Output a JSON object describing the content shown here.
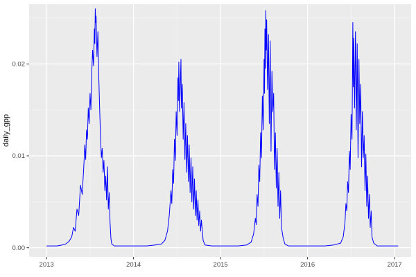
{
  "chart_data": {
    "type": "line",
    "title": "",
    "xlabel": "",
    "ylabel": "daily_gpp",
    "legend": "none",
    "grid": true,
    "xlim": [
      2012.8,
      2017.19
    ],
    "ylim": [
      -0.001,
      0.0265
    ],
    "x_ticks": {
      "values": [
        2013,
        2014,
        2015,
        2016,
        2017
      ],
      "labels": [
        "2013",
        "2014",
        "2015",
        "2016",
        "2017"
      ]
    },
    "y_ticks": {
      "values": [
        0,
        0.01,
        0.02
      ],
      "labels": [
        "0.00",
        "0.01",
        "0.02"
      ]
    },
    "x_minor": [
      2013.5,
      2014.5,
      2015.5,
      2016.5
    ],
    "y_minor": [
      0.005,
      0.015,
      0.025
    ],
    "colors": {
      "panel_bg": "#EBEBEB",
      "grid_major": "#FFFFFF",
      "grid_minor": "#F5F5F5",
      "line": "#0000FF",
      "tick_mark": "#333333",
      "tick_label": "#4D4D4D"
    },
    "series": [
      {
        "name": "daily_gpp",
        "color": "#0000FF",
        "points": [
          [
            2013.0,
            0.0002
          ],
          [
            2013.06,
            0.0002
          ],
          [
            2013.12,
            0.0002
          ],
          [
            2013.18,
            0.0003
          ],
          [
            2013.22,
            0.0004
          ],
          [
            2013.26,
            0.0007
          ],
          [
            2013.29,
            0.0012
          ],
          [
            2013.31,
            0.0022
          ],
          [
            2013.33,
            0.0018
          ],
          [
            2013.35,
            0.0042
          ],
          [
            2013.37,
            0.0035
          ],
          [
            2013.39,
            0.0068
          ],
          [
            2013.41,
            0.0058
          ],
          [
            2013.43,
            0.0092
          ],
          [
            2013.44,
            0.0112
          ],
          [
            2013.45,
            0.0096
          ],
          [
            2013.46,
            0.0128
          ],
          [
            2013.47,
            0.0118
          ],
          [
            2013.48,
            0.0152
          ],
          [
            2013.49,
            0.0135
          ],
          [
            2013.5,
            0.0168
          ],
          [
            2013.51,
            0.015
          ],
          [
            2013.52,
            0.0192
          ],
          [
            2013.53,
            0.0215
          ],
          [
            2013.54,
            0.0198
          ],
          [
            2013.55,
            0.0238
          ],
          [
            2013.555,
            0.0222
          ],
          [
            2013.56,
            0.026
          ],
          [
            2013.565,
            0.0245
          ],
          [
            2013.57,
            0.0252
          ],
          [
            2013.58,
            0.0208
          ],
          [
            2013.59,
            0.0235
          ],
          [
            2013.6,
            0.0188
          ],
          [
            2013.61,
            0.0152
          ],
          [
            2013.62,
            0.0122
          ],
          [
            2013.63,
            0.0098
          ],
          [
            2013.64,
            0.0108
          ],
          [
            2013.65,
            0.0082
          ],
          [
            2013.66,
            0.0095
          ],
          [
            2013.67,
            0.0062
          ],
          [
            2013.68,
            0.0078
          ],
          [
            2013.69,
            0.0052
          ],
          [
            2013.7,
            0.0088
          ],
          [
            2013.71,
            0.0042
          ],
          [
            2013.72,
            0.006
          ],
          [
            2013.73,
            0.0028
          ],
          [
            2013.74,
            0.001
          ],
          [
            2013.75,
            0.0004
          ],
          [
            2013.78,
            0.0002
          ],
          [
            2013.85,
            0.0002
          ],
          [
            2013.95,
            0.0002
          ],
          [
            2014.05,
            0.0002
          ],
          [
            2014.15,
            0.0002
          ],
          [
            2014.25,
            0.0003
          ],
          [
            2014.32,
            0.0004
          ],
          [
            2014.36,
            0.0008
          ],
          [
            2014.39,
            0.0018
          ],
          [
            2014.41,
            0.0035
          ],
          [
            2014.43,
            0.0062
          ],
          [
            2014.44,
            0.0048
          ],
          [
            2014.45,
            0.0085
          ],
          [
            2014.46,
            0.007
          ],
          [
            2014.47,
            0.0118
          ],
          [
            2014.48,
            0.0095
          ],
          [
            2014.49,
            0.0148
          ],
          [
            2014.5,
            0.0122
          ],
          [
            2014.51,
            0.0185
          ],
          [
            2014.515,
            0.016
          ],
          [
            2014.52,
            0.0202
          ],
          [
            2014.53,
            0.0148
          ],
          [
            2014.54,
            0.0188
          ],
          [
            2014.545,
            0.0205
          ],
          [
            2014.55,
            0.0152
          ],
          [
            2014.56,
            0.0178
          ],
          [
            2014.57,
            0.0118
          ],
          [
            2014.58,
            0.0158
          ],
          [
            2014.59,
            0.0096
          ],
          [
            2014.6,
            0.0135
          ],
          [
            2014.61,
            0.0082
          ],
          [
            2014.62,
            0.0122
          ],
          [
            2014.63,
            0.0072
          ],
          [
            2014.64,
            0.0112
          ],
          [
            2014.65,
            0.006
          ],
          [
            2014.66,
            0.0098
          ],
          [
            2014.67,
            0.005
          ],
          [
            2014.68,
            0.0088
          ],
          [
            2014.69,
            0.0042
          ],
          [
            2014.7,
            0.0075
          ],
          [
            2014.71,
            0.0035
          ],
          [
            2014.72,
            0.0062
          ],
          [
            2014.73,
            0.003
          ],
          [
            2014.74,
            0.0052
          ],
          [
            2014.75,
            0.0024
          ],
          [
            2014.76,
            0.004
          ],
          [
            2014.77,
            0.0018
          ],
          [
            2014.78,
            0.003
          ],
          [
            2014.8,
            0.0008
          ],
          [
            2014.82,
            0.0003
          ],
          [
            2014.9,
            0.0002
          ],
          [
            2015.0,
            0.0002
          ],
          [
            2015.1,
            0.0002
          ],
          [
            2015.2,
            0.0002
          ],
          [
            2015.3,
            0.0003
          ],
          [
            2015.35,
            0.0006
          ],
          [
            2015.38,
            0.0015
          ],
          [
            2015.4,
            0.0032
          ],
          [
            2015.41,
            0.0025
          ],
          [
            2015.42,
            0.0058
          ],
          [
            2015.43,
            0.0045
          ],
          [
            2015.44,
            0.009
          ],
          [
            2015.45,
            0.0072
          ],
          [
            2015.46,
            0.0125
          ],
          [
            2015.47,
            0.0098
          ],
          [
            2015.48,
            0.0165
          ],
          [
            2015.49,
            0.0128
          ],
          [
            2015.5,
            0.0205
          ],
          [
            2015.505,
            0.0168
          ],
          [
            2015.51,
            0.0238
          ],
          [
            2015.515,
            0.0195
          ],
          [
            2015.52,
            0.0258
          ],
          [
            2015.525,
            0.0215
          ],
          [
            2015.53,
            0.0248
          ],
          [
            2015.54,
            0.0172
          ],
          [
            2015.55,
            0.0232
          ],
          [
            2015.56,
            0.0135
          ],
          [
            2015.57,
            0.0225
          ],
          [
            2015.58,
            0.0105
          ],
          [
            2015.59,
            0.0192
          ],
          [
            2015.6,
            0.0148
          ],
          [
            2015.61,
            0.0168
          ],
          [
            2015.62,
            0.0085
          ],
          [
            2015.63,
            0.0125
          ],
          [
            2015.64,
            0.0065
          ],
          [
            2015.65,
            0.0108
          ],
          [
            2015.66,
            0.0045
          ],
          [
            2015.67,
            0.0082
          ],
          [
            2015.68,
            0.0032
          ],
          [
            2015.69,
            0.0062
          ],
          [
            2015.7,
            0.0022
          ],
          [
            2015.72,
            0.001
          ],
          [
            2015.74,
            0.0004
          ],
          [
            2015.78,
            0.0002
          ],
          [
            2015.9,
            0.0002
          ],
          [
            2016.0,
            0.0002
          ],
          [
            2016.1,
            0.0002
          ],
          [
            2016.2,
            0.0002
          ],
          [
            2016.3,
            0.0003
          ],
          [
            2016.38,
            0.0005
          ],
          [
            2016.41,
            0.0012
          ],
          [
            2016.43,
            0.0028
          ],
          [
            2016.44,
            0.0048
          ],
          [
            2016.45,
            0.004
          ],
          [
            2016.46,
            0.0072
          ],
          [
            2016.47,
            0.006
          ],
          [
            2016.48,
            0.0105
          ],
          [
            2016.49,
            0.0085
          ],
          [
            2016.5,
            0.0145
          ],
          [
            2016.51,
            0.0118
          ],
          [
            2016.52,
            0.0245
          ],
          [
            2016.525,
            0.0175
          ],
          [
            2016.53,
            0.0228
          ],
          [
            2016.54,
            0.0152
          ],
          [
            2016.55,
            0.0235
          ],
          [
            2016.56,
            0.0128
          ],
          [
            2016.57,
            0.0222
          ],
          [
            2016.58,
            0.0098
          ],
          [
            2016.59,
            0.0205
          ],
          [
            2016.6,
            0.0135
          ],
          [
            2016.61,
            0.0178
          ],
          [
            2016.62,
            0.0088
          ],
          [
            2016.63,
            0.0148
          ],
          [
            2016.64,
            0.0098
          ],
          [
            2016.65,
            0.0122
          ],
          [
            2016.66,
            0.0062
          ],
          [
            2016.67,
            0.0102
          ],
          [
            2016.68,
            0.0045
          ],
          [
            2016.69,
            0.0078
          ],
          [
            2016.7,
            0.0032
          ],
          [
            2016.71,
            0.0058
          ],
          [
            2016.72,
            0.0022
          ],
          [
            2016.73,
            0.004
          ],
          [
            2016.74,
            0.0012
          ],
          [
            2016.76,
            0.0005
          ],
          [
            2016.8,
            0.0002
          ],
          [
            2016.9,
            0.0002
          ],
          [
            2017.0,
            0.0002
          ],
          [
            2017.04,
            0.0002
          ]
        ]
      }
    ]
  }
}
